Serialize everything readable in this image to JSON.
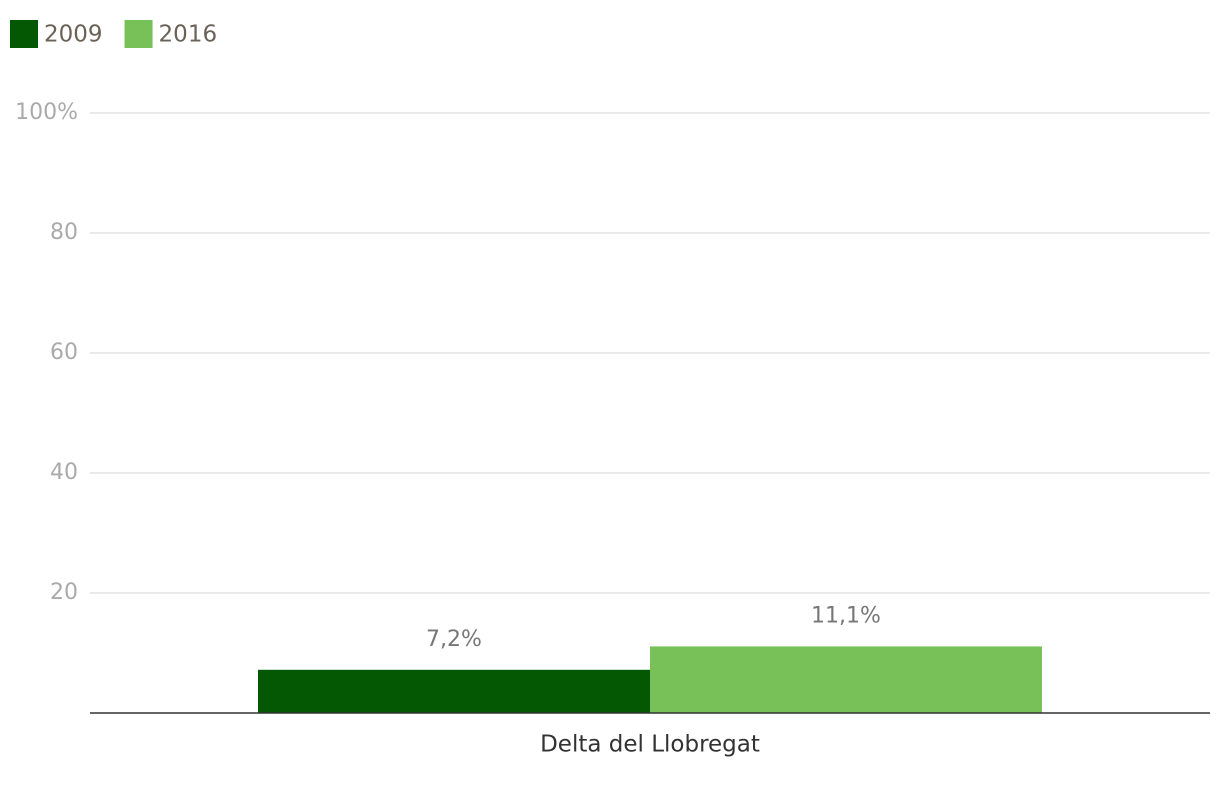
{
  "chart_data": {
    "type": "bar",
    "categories": [
      "Delta del Llobregat"
    ],
    "series": [
      {
        "name": "2009",
        "color": "#045804",
        "values": [
          7.2
        ],
        "value_labels": [
          "7,2%"
        ]
      },
      {
        "name": "2016",
        "color": "#78c158",
        "values": [
          11.1
        ],
        "value_labels": [
          "11,1%"
        ]
      }
    ],
    "ylim": [
      0,
      100
    ],
    "yticks": [
      20,
      40,
      60,
      80,
      {
        "value": 100,
        "label": "100%"
      }
    ],
    "grid": true,
    "legend": "top-left"
  }
}
